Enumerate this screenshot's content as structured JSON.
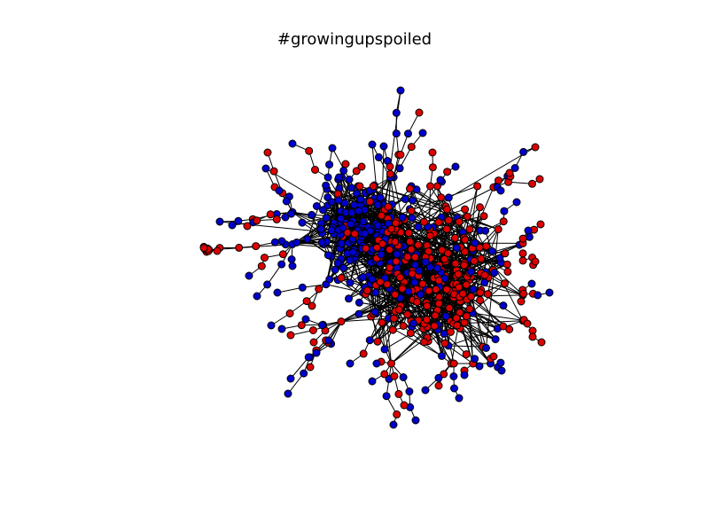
{
  "figure": {
    "title": "#growingupspoiled"
  },
  "graph": {
    "type": "network",
    "layout": "force-directed",
    "node_colors": {
      "community_a": "#0000cc",
      "community_b": "#dd0000"
    },
    "node_outline_color": "#000000",
    "edge_color": "#000000"
  }
}
